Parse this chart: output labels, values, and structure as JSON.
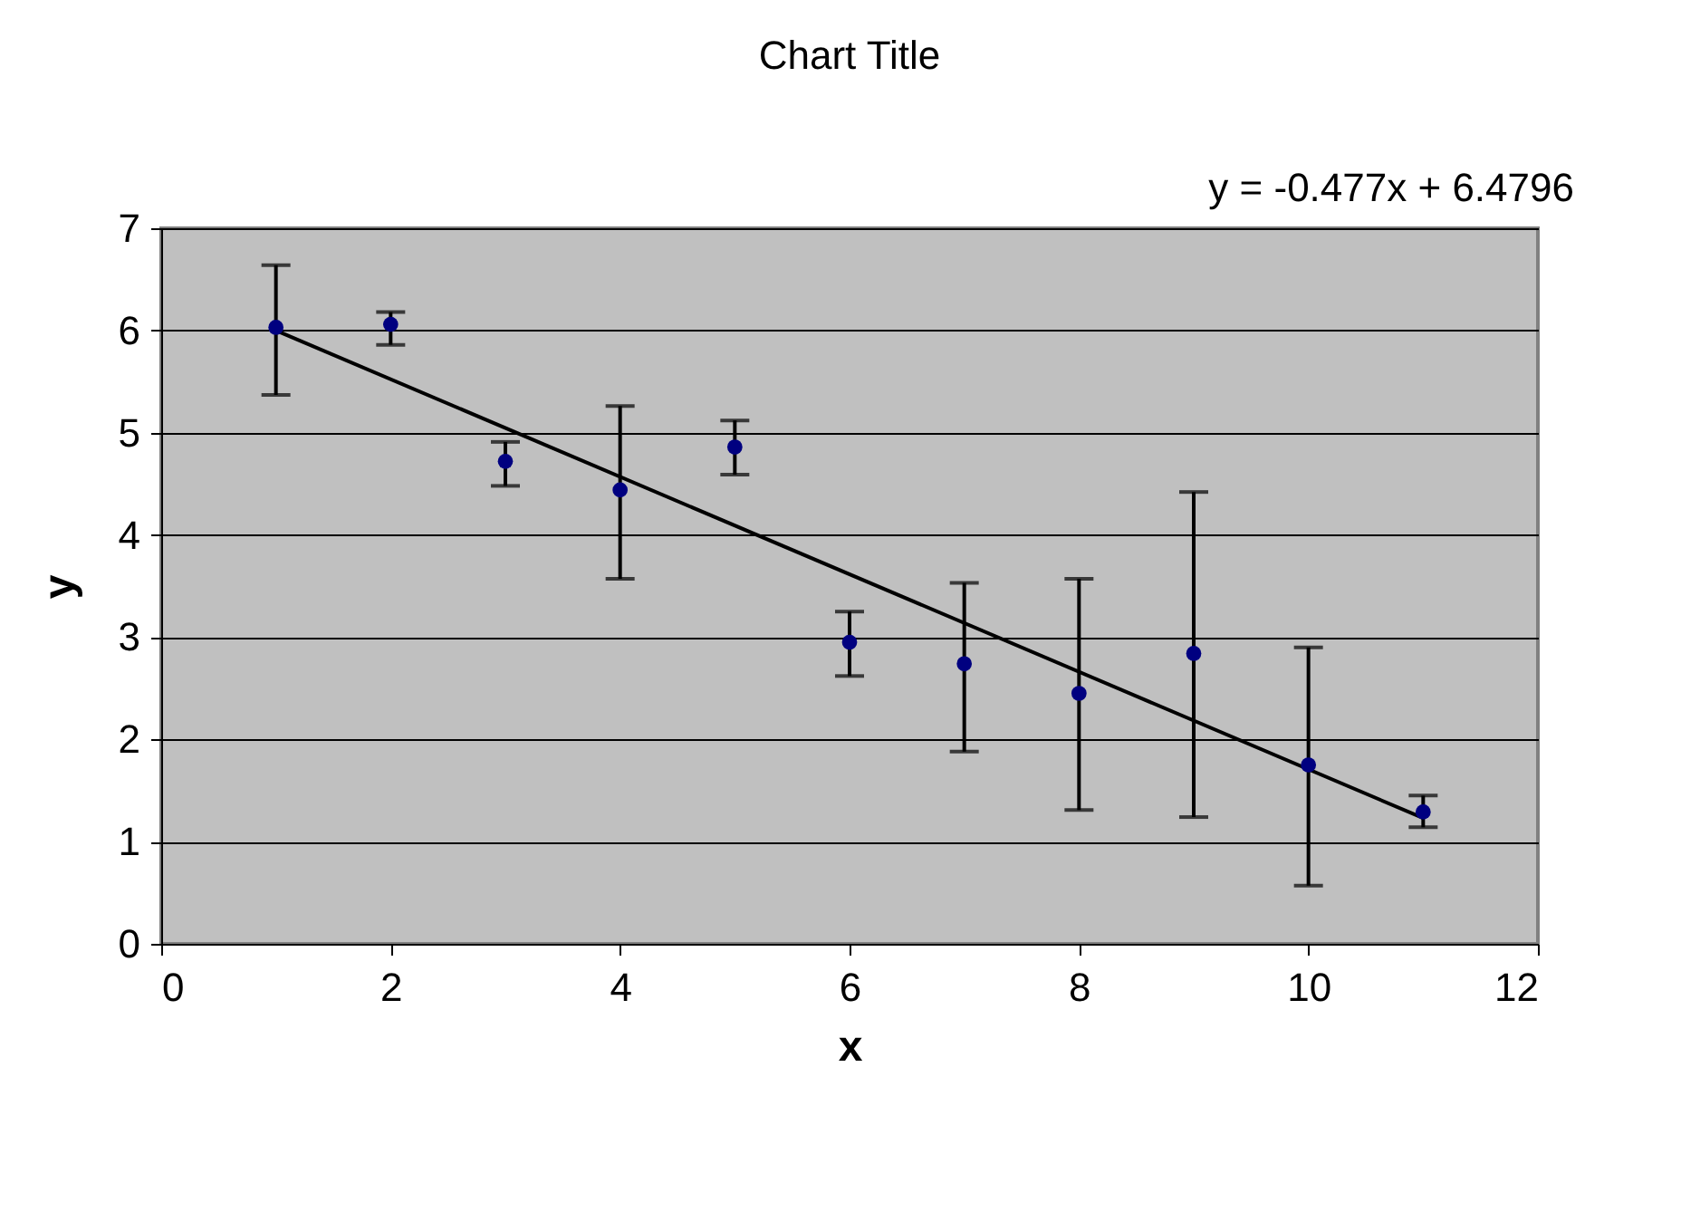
{
  "chart_data": {
    "type": "scatter",
    "title": "Chart Title",
    "xlabel": "x",
    "ylabel": "y",
    "annotations": [
      "y = -0.477x + 6.4796"
    ],
    "xlim": [
      0,
      12
    ],
    "xticks": [
      0,
      2,
      4,
      6,
      8,
      10,
      12
    ],
    "ylim": [
      0,
      7
    ],
    "yticks": [
      0,
      1,
      2,
      3,
      4,
      5,
      6,
      7
    ],
    "grid": "y",
    "legend": false,
    "series": [
      {
        "color": "#000080",
        "marker": "circle",
        "x": [
          1,
          2,
          3,
          4,
          5,
          6,
          7,
          8,
          9,
          10,
          11
        ],
        "values": [
          6.03,
          6.06,
          4.72,
          4.44,
          4.86,
          2.95,
          2.74,
          2.45,
          2.84,
          1.75,
          1.29
        ],
        "errors": [
          [
            5.37,
            6.64
          ],
          [
            5.86,
            6.18
          ],
          [
            4.48,
            4.91
          ],
          [
            3.57,
            5.26
          ],
          [
            4.59,
            5.12
          ],
          [
            2.62,
            3.25
          ],
          [
            1.88,
            3.53
          ],
          [
            1.31,
            3.57
          ],
          [
            1.24,
            4.42
          ],
          [
            0.57,
            2.9
          ],
          [
            1.14,
            1.45
          ]
        ]
      },
      {
        "type": "line",
        "color": "#000000",
        "x": [
          1,
          11
        ],
        "values": [
          6.0,
          1.23
        ]
      }
    ]
  }
}
